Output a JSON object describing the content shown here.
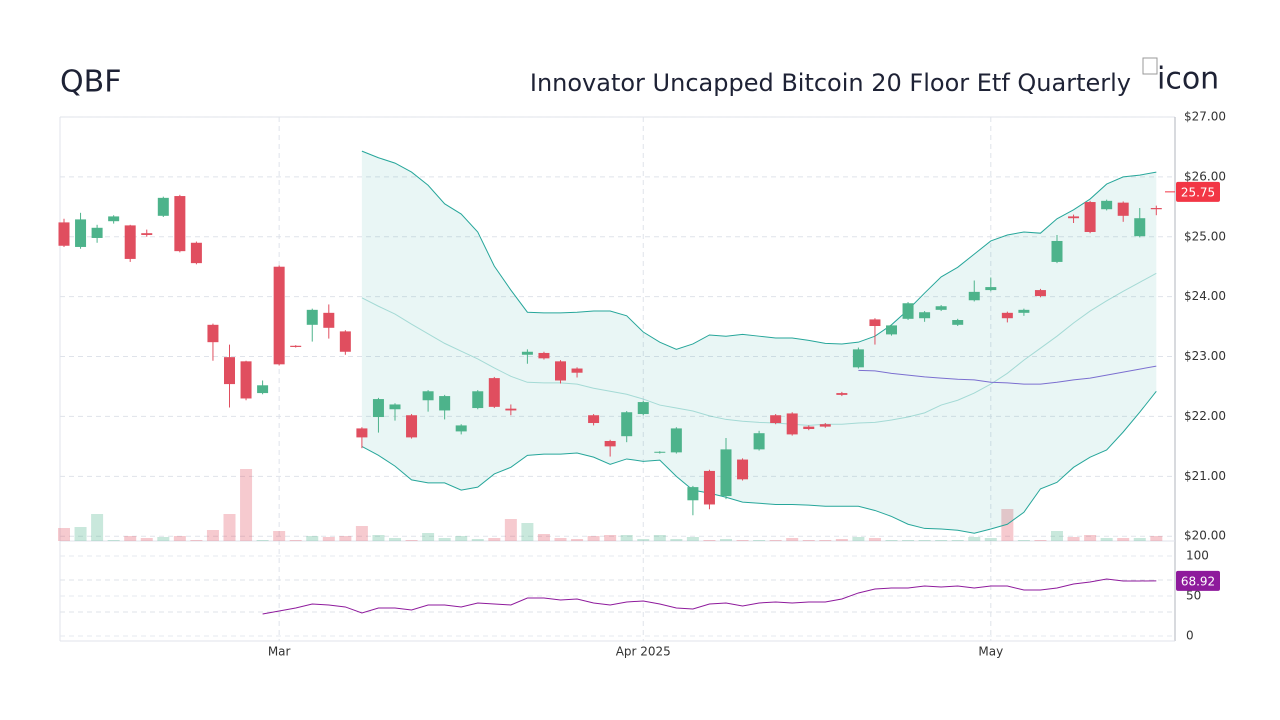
{
  "chart_data": {
    "type": "candlestick",
    "symbol": "QBF",
    "title": "Innovator Uncapped Bitcoin 20 Floor Etf Quarterly",
    "icon_alt": "icon",
    "categories": [
      null,
      null,
      null,
      null,
      null,
      null,
      null,
      null,
      null,
      null,
      null,
      null,
      null,
      "Mar",
      null,
      null,
      null,
      null,
      null,
      null,
      null,
      null,
      null,
      null,
      null,
      null,
      null,
      null,
      null,
      null,
      null,
      null,
      null,
      null,
      null,
      "Apr 2025",
      null,
      null,
      null,
      null,
      null,
      null,
      null,
      null,
      null,
      null,
      null,
      null,
      null,
      null,
      null,
      null,
      null,
      null,
      null,
      null,
      "May",
      null,
      null,
      null,
      null,
      null,
      null,
      null,
      null,
      null,
      null
    ],
    "open": [
      25.24,
      24.83,
      24.98,
      25.26,
      25.19,
      25.06,
      25.35,
      25.68,
      24.9,
      23.53,
      22.99,
      22.92,
      22.39,
      24.5,
      23.18,
      23.53,
      23.73,
      23.42,
      21.8,
      21.99,
      22.12,
      22.02,
      22.27,
      22.1,
      21.75,
      22.14,
      22.64,
      22.13,
      23.03,
      23.06,
      22.92,
      22.8,
      22.02,
      21.59,
      21.67,
      22.04,
      21.4,
      21.4,
      20.6,
      21.09,
      20.67,
      21.28,
      21.45,
      22.02,
      22.05,
      21.83,
      21.87,
      22.39,
      22.82,
      23.62,
      23.37,
      23.63,
      23.64,
      23.78,
      23.53,
      23.94,
      24.11,
      23.73,
      23.73,
      24.11,
      24.58,
      25.34,
      25.58,
      25.46,
      25.57,
      25.01,
      25.48
    ],
    "high": [
      25.3,
      25.4,
      25.2,
      25.36,
      25.2,
      25.12,
      25.67,
      25.7,
      24.92,
      23.55,
      23.2,
      22.93,
      22.6,
      24.52,
      23.19,
      23.8,
      23.87,
      23.44,
      21.82,
      22.31,
      22.22,
      22.04,
      22.44,
      22.36,
      21.87,
      22.44,
      22.66,
      22.2,
      23.12,
      23.08,
      22.94,
      22.82,
      22.04,
      21.61,
      22.09,
      22.26,
      21.42,
      21.82,
      20.84,
      21.11,
      21.64,
      21.3,
      21.76,
      22.04,
      22.07,
      21.85,
      21.89,
      22.41,
      23.15,
      23.64,
      23.54,
      23.91,
      23.76,
      23.86,
      23.63,
      24.27,
      24.32,
      23.75,
      23.8,
      24.13,
      25.03,
      25.37,
      25.6,
      25.62,
      25.59,
      25.48,
      25.52
    ],
    "low": [
      24.83,
      24.8,
      24.9,
      25.22,
      24.58,
      25.0,
      25.33,
      24.74,
      24.54,
      22.93,
      22.15,
      22.27,
      22.37,
      22.85,
      23.15,
      23.25,
      23.3,
      23.03,
      21.47,
      21.73,
      21.93,
      21.63,
      22.08,
      21.95,
      21.7,
      22.12,
      22.14,
      22.02,
      22.88,
      22.95,
      22.55,
      22.65,
      21.85,
      21.33,
      21.57,
      22.02,
      21.38,
      21.38,
      20.35,
      20.45,
      20.62,
      20.93,
      21.43,
      21.87,
      21.68,
      21.77,
      21.81,
      22.34,
      22.8,
      23.2,
      23.35,
      23.61,
      23.58,
      23.76,
      23.51,
      23.92,
      24.09,
      23.57,
      23.68,
      23.99,
      24.56,
      25.23,
      25.06,
      25.44,
      25.25,
      24.99,
      25.36
    ],
    "close": [
      24.85,
      25.29,
      25.15,
      25.34,
      24.63,
      25.03,
      25.65,
      24.76,
      24.56,
      23.24,
      22.54,
      22.3,
      22.52,
      22.87,
      23.16,
      23.78,
      23.48,
      23.08,
      21.65,
      22.29,
      22.2,
      21.65,
      22.42,
      22.34,
      21.85,
      22.42,
      22.16,
      22.1,
      23.08,
      22.97,
      22.6,
      22.73,
      21.89,
      21.5,
      22.07,
      22.24,
      21.41,
      21.8,
      20.82,
      20.53,
      21.45,
      20.95,
      21.72,
      21.89,
      21.7,
      21.79,
      21.83,
      22.36,
      23.12,
      23.51,
      23.52,
      23.89,
      23.74,
      23.84,
      23.61,
      24.08,
      24.16,
      23.64,
      23.78,
      24.01,
      24.93,
      25.31,
      25.08,
      25.6,
      25.35,
      25.31,
      25.46
    ],
    "volume": [
      13,
      14,
      27,
      1,
      5,
      3,
      4,
      5,
      1,
      11,
      27,
      72,
      1,
      10,
      1,
      5,
      4,
      5,
      15,
      6,
      3,
      1,
      8,
      3,
      5,
      2,
      3,
      22,
      18,
      7,
      3,
      2,
      5,
      6,
      6,
      2,
      6,
      2,
      4,
      1,
      2,
      1,
      1,
      1,
      3,
      1,
      1,
      2,
      4,
      3,
      1,
      1,
      1,
      1,
      1,
      4,
      3,
      32,
      1,
      1,
      10,
      4,
      6,
      3,
      3,
      3,
      5
    ],
    "bollinger_upper": [
      null,
      null,
      null,
      null,
      null,
      null,
      null,
      null,
      null,
      null,
      null,
      null,
      null,
      null,
      null,
      null,
      null,
      null,
      26.43,
      26.32,
      26.23,
      26.08,
      25.86,
      25.55,
      25.38,
      25.08,
      24.51,
      24.11,
      23.74,
      23.73,
      23.73,
      23.74,
      23.76,
      23.76,
      23.68,
      23.41,
      23.24,
      23.12,
      23.21,
      23.36,
      23.34,
      23.37,
      23.34,
      23.31,
      23.31,
      23.27,
      23.22,
      23.21,
      23.24,
      23.34,
      23.53,
      23.78,
      24.06,
      24.33,
      24.49,
      24.71,
      24.93,
      25.03,
      25.08,
      25.06,
      25.3,
      25.45,
      25.63,
      25.88,
      26.0,
      26.03,
      26.08
    ],
    "bollinger_middle": [
      null,
      null,
      null,
      null,
      null,
      null,
      null,
      null,
      null,
      null,
      null,
      null,
      null,
      null,
      null,
      null,
      null,
      null,
      23.98,
      23.84,
      23.71,
      23.54,
      23.38,
      23.22,
      23.09,
      22.96,
      22.81,
      22.67,
      22.57,
      22.56,
      22.56,
      22.54,
      22.47,
      22.42,
      22.37,
      22.29,
      22.19,
      22.14,
      22.09,
      22.01,
      21.95,
      21.92,
      21.9,
      21.89,
      21.87,
      21.85,
      21.87,
      21.87,
      21.89,
      21.9,
      21.94,
      21.99,
      22.06,
      22.19,
      22.27,
      22.39,
      22.54,
      22.72,
      22.94,
      23.14,
      23.34,
      23.56,
      23.76,
      23.93,
      24.09,
      24.24,
      24.39
    ],
    "bollinger_lower": [
      null,
      null,
      null,
      null,
      null,
      null,
      null,
      null,
      null,
      null,
      null,
      null,
      null,
      null,
      null,
      null,
      null,
      null,
      21.5,
      21.35,
      21.17,
      20.94,
      20.89,
      20.89,
      20.77,
      20.82,
      21.04,
      21.15,
      21.35,
      21.37,
      21.37,
      21.39,
      21.32,
      21.2,
      21.29,
      21.25,
      21.27,
      21.0,
      20.77,
      20.72,
      20.65,
      20.57,
      20.55,
      20.53,
      20.53,
      20.52,
      20.5,
      20.5,
      20.5,
      20.43,
      20.33,
      20.2,
      20.13,
      20.12,
      20.1,
      20.05,
      20.12,
      20.2,
      20.4,
      20.79,
      20.9,
      21.15,
      21.32,
      21.44,
      21.74,
      22.07,
      22.42
    ],
    "moving_average": [
      null,
      null,
      null,
      null,
      null,
      null,
      null,
      null,
      null,
      null,
      null,
      null,
      null,
      null,
      null,
      null,
      null,
      null,
      null,
      null,
      null,
      null,
      null,
      null,
      null,
      null,
      null,
      null,
      null,
      null,
      null,
      null,
      null,
      null,
      null,
      null,
      null,
      null,
      null,
      null,
      null,
      null,
      null,
      null,
      null,
      null,
      null,
      null,
      22.77,
      22.76,
      22.72,
      22.69,
      22.66,
      22.64,
      22.62,
      22.61,
      22.57,
      22.56,
      22.54,
      22.54,
      22.57,
      22.61,
      22.64,
      22.69,
      22.74,
      22.79,
      22.84
    ],
    "up_color": "#4db38b",
    "down_color": "#e04e5f",
    "band_color": "#26a69a",
    "ma_color": "#7b6fd0",
    "ylim": [
      19.92,
      27.0
    ],
    "yticks": [
      {
        "value": 27,
        "label": "$27.00"
      },
      {
        "value": 26,
        "label": "$26.00"
      },
      {
        "value": 25,
        "label": "$25.00"
      },
      {
        "value": 24,
        "label": "$24.00"
      },
      {
        "value": 23,
        "label": "$23.00"
      },
      {
        "value": 22,
        "label": "$22.00"
      },
      {
        "value": 21,
        "label": "$21.00"
      },
      {
        "value": 20,
        "label": "$20.00"
      }
    ],
    "last_price": 25.75,
    "last_color": "#f23645",
    "grid": true,
    "rsi": {
      "values": [
        null,
        null,
        null,
        null,
        null,
        null,
        null,
        null,
        null,
        null,
        null,
        null,
        27.5,
        31.3,
        35,
        40,
        38.8,
        36.3,
        28.8,
        35,
        35,
        32.5,
        38.8,
        38.8,
        36.3,
        41.3,
        40,
        38.8,
        47.5,
        47.5,
        45,
        46.3,
        41.3,
        38.8,
        42.5,
        43.8,
        40,
        35,
        33.8,
        40,
        41.3,
        37.5,
        41.3,
        42.5,
        41.3,
        42.5,
        42.5,
        46.3,
        53.8,
        58.8,
        60,
        60,
        62.5,
        61.3,
        62.5,
        60,
        62.5,
        62.5,
        57.5,
        57.5,
        60,
        65,
        67.5,
        71.3,
        68.8,
        68.8,
        68.92
      ],
      "color": "#8e1a9c",
      "ylim": [
        0,
        100
      ],
      "yticks": [
        0,
        50,
        100
      ],
      "levels": [
        30,
        70
      ]
    }
  }
}
